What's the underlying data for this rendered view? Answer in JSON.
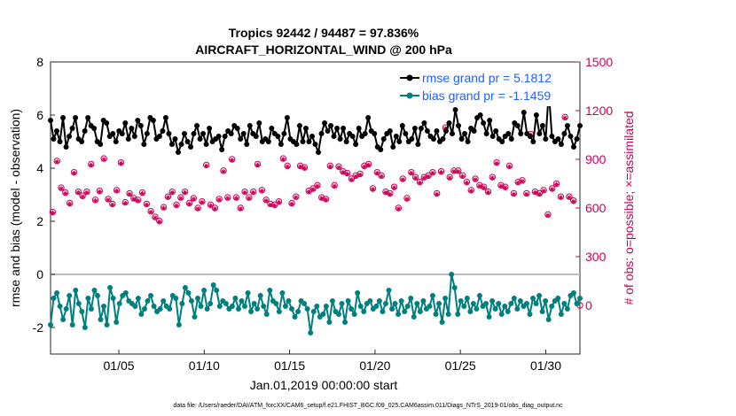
{
  "chart_data": {
    "type": "line",
    "title": "Tropics 92442 / 94487 = 97.836%",
    "subtitle": "AIRCRAFT_HORIZONTAL_WIND @ 200 hPa",
    "xlabel": "Jan.01,2019 00:00:00 start",
    "ylabel_left": "rmse and bias (model - observation)",
    "ylabel_right": "# of obs: o=possible; ×=assimilated",
    "xlim": [
      1,
      32
    ],
    "ylim_left": [
      -3,
      8
    ],
    "ylim_right": [
      -300,
      1500
    ],
    "xticks": [
      5,
      10,
      15,
      20,
      25,
      30
    ],
    "xtick_labels": [
      "01/05",
      "01/10",
      "01/15",
      "01/20",
      "01/25",
      "01/30"
    ],
    "yticks_left": [
      "8",
      "6",
      "4",
      "2",
      "0",
      "-2"
    ],
    "yticks_right": [
      "1500",
      "1200",
      "900",
      "600",
      "300",
      "0"
    ],
    "legend": [
      "rmse grand pr = 5.1812",
      "bias grand pr = -1.1459"
    ],
    "legend_position": "top-right",
    "footer": "data file: /Users/raeder/DAI/ATM_forcXX/CAM6_setup/f.e21.FHIST_BGC.f09_025.CAM6assim.011/Diags_NTrS_2019-01/obs_diag_output.nc",
    "colors": {
      "rmse": "#000000",
      "bias": "#007f7f",
      "count": "#cc0055",
      "legend_text": "#1f5fff",
      "zero_line": "#bdbdbd"
    },
    "rmse_values": [
      5.8,
      5.1,
      5.4,
      5.0,
      5.9,
      4.8,
      5.2,
      5.5,
      5.9,
      5.1,
      5.0,
      5.4,
      5.9,
      5.6,
      5.5,
      5.0,
      4.9,
      5.8,
      5.7,
      5.2,
      5.3,
      5.0,
      5.4,
      5.3,
      5.7,
      5.1,
      5.5,
      5.2,
      5.8,
      5.6,
      4.9,
      5.3,
      5.9,
      5.8,
      5.1,
      5.2,
      5.4,
      5.9,
      5.3,
      4.9,
      5.1,
      4.6,
      4.9,
      5.3,
      5.0,
      4.8,
      5.3,
      5.6,
      5.1,
      5.3,
      4.9,
      5.5,
      5.0,
      5.1,
      5.2,
      4.7,
      5.2,
      5.4,
      5.3,
      5.6,
      5.5,
      5.1,
      5.3,
      4.9,
      5.6,
      5.3,
      5.2,
      5.7,
      5.0,
      5.1,
      5.0,
      5.5,
      5.3,
      5.2,
      4.9,
      5.3,
      5.9,
      5.1,
      5.0,
      4.9,
      5.6,
      5.0,
      5.5,
      5.0,
      5.2,
      4.9,
      4.6,
      5.3,
      5.7,
      5.4,
      5.6,
      5.2,
      5.5,
      5.1,
      5.5,
      5.0,
      5.3,
      5.2,
      4.9,
      5.5,
      5.2,
      5.3,
      5.9,
      5.4,
      5.3,
      4.8,
      4.7,
      5.1,
      5.3,
      5.4,
      4.8,
      5.2,
      5.0,
      5.6,
      5.3,
      5.0,
      5.1,
      5.5,
      4.9,
      5.5,
      5.7,
      5.4,
      5.2,
      5.1,
      5.4,
      5.0,
      5.1,
      5.4,
      5.7,
      5.3,
      6.2,
      5.6,
      5.1,
      5.3,
      5.0,
      5.5,
      5.4,
      5.9,
      6.0,
      5.7,
      5.3,
      5.8,
      5.2,
      5.4,
      5.1,
      5.0,
      5.2,
      5.3,
      5.1,
      5.7,
      5.6,
      5.3,
      6.1,
      5.3,
      5.2,
      5.0,
      6.0,
      5.3,
      5.6,
      5.1,
      6.9,
      5.2,
      5.0,
      5.1,
      4.9,
      5.3,
      5.6,
      5.2,
      4.8,
      5.1,
      5.6
    ],
    "bias_values": [
      -1.9,
      -0.9,
      -0.7,
      -1.2,
      -1.7,
      -1.3,
      -0.8,
      -1.9,
      -0.6,
      -1.1,
      -1.4,
      -2.0,
      -0.9,
      -1.3,
      -0.6,
      -0.8,
      -1.7,
      -1.2,
      -1.9,
      -0.5,
      -0.9,
      -1.8,
      -1.1,
      -0.8,
      -0.7,
      -1.0,
      -1.1,
      -1.2,
      -0.9,
      -1.5,
      -1.3,
      -1.0,
      -0.8,
      -1.2,
      -1.4,
      -1.3,
      -1.0,
      -1.2,
      -1.3,
      -0.8,
      -0.9,
      -1.9,
      -1.1,
      -0.5,
      -0.7,
      -1.0,
      -1.6,
      -0.9,
      -1.2,
      -0.6,
      -1.3,
      -1.1,
      -0.4,
      -0.6,
      -1.2,
      -1.0,
      -1.1,
      -1.3,
      -1.2,
      -0.9,
      -1.3,
      -1.0,
      -1.2,
      -0.7,
      -1.4,
      -1.1,
      -1.3,
      -0.8,
      -1.2,
      -1.5,
      -0.6,
      -1.0,
      -1.1,
      -1.4,
      -0.7,
      -1.2,
      -1.0,
      -1.3,
      -1.6,
      -1.4,
      -1.0,
      -1.1,
      -1.3,
      -2.2,
      -1.4,
      -1.2,
      -1.6,
      -1.5,
      -1.2,
      -1.8,
      -1.0,
      -1.4,
      -1.5,
      -1.1,
      -1.8,
      -1.0,
      -1.3,
      -1.5,
      -0.7,
      -1.2,
      -1.4,
      -1.1,
      -1.0,
      -1.3,
      -1.2,
      -1.0,
      -1.4,
      -1.1,
      -0.6,
      -1.3,
      -1.1,
      -1.5,
      -1.0,
      -1.4,
      -1.2,
      -0.9,
      -1.6,
      -1.1,
      -1.4,
      -1.0,
      -1.3,
      -1.2,
      -0.8,
      -1.5,
      -1.1,
      -1.8,
      -0.9,
      -1.5,
      0.0,
      -0.5,
      -1.5,
      -1.0,
      -1.2,
      -0.9,
      -1.4,
      -1.1,
      -1.3,
      -0.8,
      -1.2,
      -1.1,
      -1.6,
      -1.0,
      -1.3,
      -1.1,
      -1.5,
      -1.2,
      -1.4,
      -1.1,
      -0.9,
      -1.3,
      -1.0,
      -1.2,
      -1.1,
      -1.5,
      -0.9,
      -1.1,
      -0.8,
      -1.4,
      -1.0,
      -1.7,
      -1.2,
      -1.0,
      -0.9,
      -1.5,
      -1.1,
      -1.3,
      -0.8,
      -0.7,
      -1.1,
      -0.9
    ],
    "possible_counts": [
      575,
      890,
      725,
      695,
      630,
      820,
      700,
      675,
      700,
      870,
      650,
      705,
      905,
      655,
      625,
      710,
      880,
      635,
      690,
      660,
      650,
      695,
      625,
      580,
      545,
      520,
      605,
      670,
      700,
      620,
      665,
      700,
      630,
      660,
      600,
      640,
      865,
      620,
      600,
      655,
      830,
      665,
      900,
      665,
      600,
      700,
      665,
      700,
      870,
      710,
      650,
      625,
      620,
      640,
      905,
      860,
      630,
      670,
      860,
      850,
      705,
      720,
      740,
      665,
      655,
      860,
      740,
      855,
      825,
      815,
      780,
      800,
      810,
      860,
      870,
      720,
      820,
      800,
      700,
      690,
      730,
      600,
      780,
      660,
      820,
      790,
      760,
      790,
      800,
      820,
      690,
      825,
      1095,
      790,
      830,
      830,
      800,
      760,
      710,
      780,
      740,
      730,
      700,
      790,
      880,
      740,
      730,
      860,
      690,
      760,
      770,
      690,
      1055,
      700,
      690,
      710,
      560,
      720,
      750,
      670,
      1160,
      670,
      645
    ],
    "assimilated_counts": [
      570,
      885,
      720,
      690,
      625,
      815,
      695,
      670,
      695,
      865,
      645,
      700,
      900,
      650,
      620,
      705,
      875,
      630,
      685,
      655,
      645,
      690,
      620,
      575,
      540,
      515,
      600,
      665,
      695,
      615,
      660,
      695,
      625,
      655,
      595,
      635,
      860,
      615,
      595,
      650,
      825,
      660,
      895,
      660,
      595,
      695,
      660,
      695,
      865,
      705,
      645,
      620,
      615,
      635,
      900,
      855,
      625,
      665,
      855,
      845,
      700,
      715,
      735,
      660,
      650,
      855,
      735,
      850,
      820,
      810,
      775,
      795,
      805,
      855,
      865,
      715,
      815,
      795,
      695,
      685,
      725,
      595,
      775,
      655,
      815,
      785,
      755,
      785,
      795,
      815,
      685,
      820,
      1090,
      785,
      825,
      825,
      795,
      755,
      705,
      775,
      735,
      725,
      695,
      785,
      875,
      735,
      725,
      855,
      685,
      755,
      765,
      685,
      1050,
      695,
      685,
      705,
      555,
      715,
      745,
      665,
      1155,
      665,
      640
    ],
    "last_count_value": 0
  }
}
